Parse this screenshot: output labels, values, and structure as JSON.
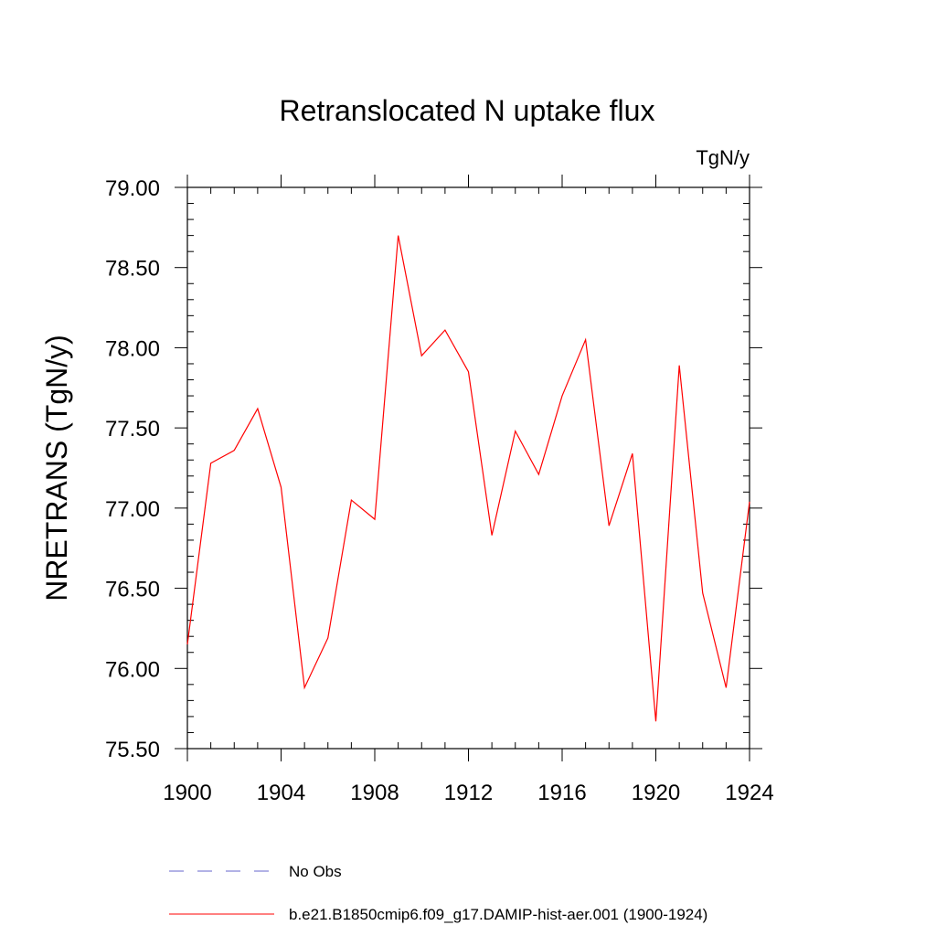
{
  "chart_data": {
    "type": "line",
    "title": "Retranslocated N uptake flux",
    "units_label": "TgN/y",
    "xlabel": "",
    "ylabel": "NRETRANS  (TgN/y)",
    "xlim": [
      1900,
      1924
    ],
    "ylim": [
      75.5,
      79.0
    ],
    "x_ticks": [
      1900,
      1904,
      1908,
      1912,
      1916,
      1920,
      1924
    ],
    "x_tick_labels": [
      "1900",
      "1904",
      "1908",
      "1912",
      "1916",
      "1920",
      "1924"
    ],
    "y_ticks": [
      75.5,
      76.0,
      76.5,
      77.0,
      77.5,
      78.0,
      78.5,
      79.0
    ],
    "y_tick_labels": [
      "75.50",
      "76.00",
      "76.50",
      "77.00",
      "77.50",
      "78.00",
      "78.50",
      "79.00"
    ],
    "grid": false,
    "legend_position": "bottom",
    "series": [
      {
        "name": "b.e21.B1850cmip6.f09_g17.DAMIP-hist-aer.001 (1900-1924)",
        "color": "#ff0000",
        "style": "solid",
        "x": [
          1900,
          1901,
          1902,
          1903,
          1904,
          1905,
          1906,
          1907,
          1908,
          1909,
          1910,
          1911,
          1912,
          1913,
          1914,
          1915,
          1916,
          1917,
          1918,
          1919,
          1920,
          1921,
          1922,
          1923,
          1924
        ],
        "values": [
          76.15,
          77.28,
          77.36,
          77.62,
          77.13,
          75.88,
          76.19,
          77.05,
          76.93,
          78.7,
          77.95,
          78.11,
          77.85,
          76.83,
          77.48,
          77.21,
          77.7,
          78.05,
          76.89,
          77.34,
          75.67,
          77.89,
          76.47,
          75.88,
          77.04
        ]
      }
    ],
    "legend": [
      {
        "label": "No Obs",
        "color": "#6666cc",
        "style": "dashed"
      },
      {
        "label": "b.e21.B1850cmip6.f09_g17.DAMIP-hist-aer.001 (1900-1924)",
        "color": "#ff0000",
        "style": "solid"
      }
    ]
  }
}
